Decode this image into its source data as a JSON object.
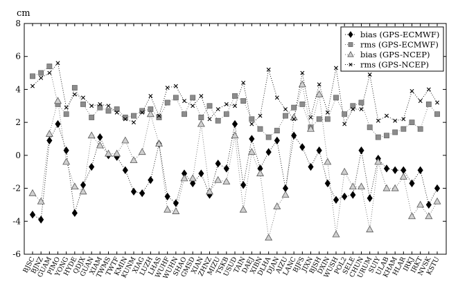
{
  "chart_data": {
    "type": "line",
    "ylabel": "cm",
    "xlabel": "",
    "title": "",
    "ylim": [
      -6,
      8
    ],
    "yticks": [
      -6,
      -4,
      -2,
      0,
      2,
      4,
      6,
      8
    ],
    "grid": false,
    "legend_position": "top-right",
    "categories": [
      "BJSC",
      "BJNZ",
      "GUAM",
      "PIMO",
      "YONG",
      "HYDE",
      "QDJX",
      "GUAN",
      "XIAM",
      "TWMS",
      "TWTF",
      "KMIN",
      "KUNM",
      "XIAG",
      "LUZH",
      "LHAS",
      "WUHF",
      "WUHN",
      "SHAO",
      "GMSD",
      "XIAN",
      "ZHNZ",
      "MIZU",
      "TSKB",
      "USUD",
      "TAIN",
      "DAEJ",
      "XIBN",
      "DLHA",
      "DJAN",
      "AIZU",
      "LANC",
      "BJFS",
      "JIXN",
      "BJSH",
      "DXIN",
      "WUSH",
      "POL2",
      "SELE",
      "CHUN",
      "URUM",
      "SUIY",
      "ULAB",
      "KHAM",
      "HLAR",
      "IRKJ",
      "IRKT",
      "NVSK",
      "KSTU"
    ],
    "series": [
      {
        "name": "bias (GPS-ECMWF)",
        "marker": "diamond",
        "color": "#000000",
        "values": [
          -3.6,
          -3.9,
          0.9,
          1.9,
          0.3,
          -3.5,
          -1.8,
          -0.7,
          1.1,
          0.0,
          -0.1,
          -0.9,
          -2.2,
          -2.3,
          -1.5,
          0.7,
          -2.5,
          -2.9,
          -1.1,
          -1.7,
          -1.1,
          -2.4,
          -0.5,
          -0.8,
          1.9,
          -1.8,
          1.0,
          -0.8,
          0.2,
          0.9,
          -2.0,
          1.2,
          0.5,
          -0.7,
          0.3,
          -1.7,
          -2.7,
          -2.5,
          -2.4,
          0.3,
          -2.6,
          -0.2,
          -0.8,
          -0.9,
          -0.9,
          -1.7,
          -0.9,
          -3.0,
          -2.0
        ]
      },
      {
        "name": "rms (GPS-ECMWF)",
        "marker": "square",
        "color": "#808080",
        "values": [
          4.8,
          5.0,
          5.4,
          3.1,
          2.5,
          4.1,
          3.1,
          2.3,
          2.9,
          2.7,
          2.8,
          2.3,
          2.4,
          2.7,
          2.8,
          2.3,
          3.2,
          3.5,
          2.5,
          3.5,
          2.3,
          3.0,
          2.1,
          2.5,
          3.6,
          3.3,
          2.2,
          1.6,
          1.1,
          1.5,
          2.4,
          2.9,
          3.1,
          1.7,
          2.2,
          2.2,
          3.5,
          2.5,
          3.0,
          3.2,
          1.7,
          1.1,
          1.2,
          1.4,
          1.6,
          2.0,
          1.6,
          3.1,
          2.5
        ]
      },
      {
        "name": "bias (GPS-NCEP)",
        "marker": "triangle",
        "color": "#808080",
        "values": [
          -2.3,
          -2.8,
          1.3,
          3.3,
          -0.4,
          -1.9,
          -2.2,
          1.2,
          0.6,
          0.1,
          0.1,
          0.9,
          -0.3,
          0.2,
          2.5,
          0.7,
          -3.3,
          -3.4,
          -1.4,
          -1.4,
          1.9,
          -2.2,
          -1.5,
          -1.6,
          1.2,
          -3.3,
          0.2,
          -1.1,
          -5.0,
          -3.1,
          -2.4,
          2.3,
          4.3,
          1.6,
          3.7,
          -0.4,
          -4.8,
          -1.0,
          -1.9,
          -1.9,
          -4.5,
          -0.4,
          -2.0,
          -2.0,
          -1.3,
          -3.7,
          -3.0,
          -3.7,
          -2.8
        ]
      },
      {
        "name": "rms (GPS-NCEP)",
        "marker": "x",
        "color": "#000000",
        "values": [
          4.2,
          4.7,
          5.0,
          5.6,
          2.9,
          3.7,
          3.5,
          3.0,
          3.1,
          3.0,
          2.6,
          2.2,
          2.0,
          2.6,
          3.6,
          2.4,
          4.1,
          4.2,
          3.3,
          3.0,
          3.6,
          2.2,
          2.8,
          3.1,
          3.0,
          4.4,
          1.9,
          2.4,
          5.2,
          3.5,
          2.8,
          2.2,
          5.0,
          2.3,
          4.3,
          2.6,
          5.3,
          1.9,
          2.8,
          2.8,
          4.9,
          2.1,
          2.4,
          2.1,
          2.2,
          3.9,
          3.3,
          4.0,
          3.2
        ]
      }
    ]
  }
}
